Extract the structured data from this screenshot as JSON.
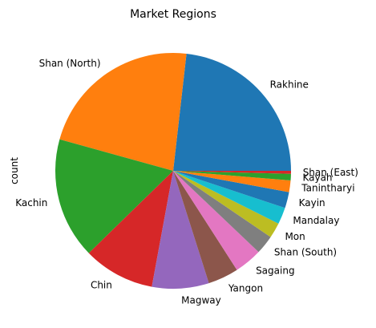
{
  "chart_data": {
    "type": "pie",
    "title": "Market Regions",
    "ylabel": "count",
    "start_angle_deg": 0,
    "direction": "counterclockwise",
    "categories": [
      "Rakhine",
      "Shan (North)",
      "Kachin",
      "Chin",
      "Magway",
      "Yangon",
      "Sagaing",
      "Shan (South)",
      "Mon",
      "Mandalay",
      "Kayin",
      "Tanintharyi",
      "Kayah",
      "Shan (East)"
    ],
    "values": [
      23.2,
      22.5,
      16.6,
      9.8,
      7.8,
      4.2,
      3.8,
      2.6,
      2.1,
      2.3,
      2.2,
      1.6,
      0.9,
      0.4
    ],
    "colors": [
      "#1f77b4",
      "#ff7f0e",
      "#2ca02c",
      "#d62728",
      "#9467bd",
      "#8c564b",
      "#e377c2",
      "#7f7f7f",
      "#bcbd22",
      "#17becf",
      "#1f77b4",
      "#ff7f0e",
      "#2ca02c",
      "#d62728"
    ]
  }
}
